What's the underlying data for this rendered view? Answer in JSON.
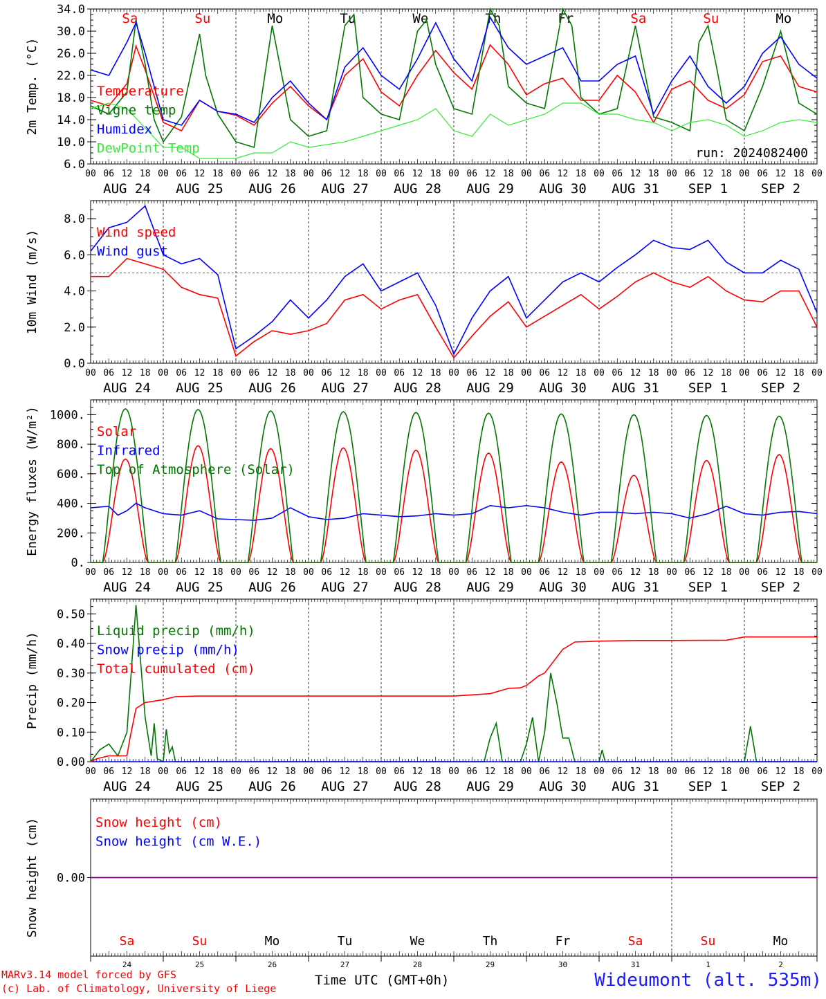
{
  "page": {
    "credit_line1": "MARv3.14 model forced by GFS",
    "credit_line2": "(c) Lab. of Climatology, University of Liege",
    "x_axis_title": "Time UTC (GMT+0h)",
    "station": "Wideumont (alt. 535m)"
  },
  "colors": {
    "red": "#ff0000",
    "green": "#007700",
    "blue": "#0000ff",
    "lightgreen": "#33ee33",
    "purple": "#7f007f"
  },
  "axis": {
    "hour_ticks": [
      "00",
      "06",
      "12",
      "18"
    ],
    "date_labels": [
      "AUG 24",
      "AUG 25",
      "AUG 26",
      "AUG 27",
      "AUG 28",
      "AUG 29",
      "AUG 30",
      "AUG 31",
      "SEP  1",
      "SEP  2"
    ],
    "day_labels": [
      {
        "text": "Sa",
        "weekend": true
      },
      {
        "text": "Su",
        "weekend": true
      },
      {
        "text": "Mo",
        "weekend": false
      },
      {
        "text": "Tu",
        "weekend": false
      },
      {
        "text": "We",
        "weekend": false
      },
      {
        "text": "Th",
        "weekend": false
      },
      {
        "text": "Fr",
        "weekend": false
      },
      {
        "text": "Sa",
        "weekend": true
      },
      {
        "text": "Su",
        "weekend": true
      },
      {
        "text": "Mo",
        "weekend": false
      }
    ],
    "day_numbers": [
      "24",
      "25",
      "26",
      "27",
      "28",
      "29",
      "30",
      "31",
      "1",
      "2"
    ]
  },
  "chart_data": [
    {
      "type": "line",
      "title": "",
      "ylabel": "2m Temp. (°C)",
      "ylim": [
        6,
        34
      ],
      "yticks": [
        "6.0",
        "10.0",
        "14.0",
        "18.0",
        "22.0",
        "26.0",
        "30.0",
        "34.0"
      ],
      "annotation": "run: 2024082400",
      "x_unit": "hours since AUG 24 00 UTC",
      "series": [
        {
          "name": "Temperature",
          "color": "red",
          "x": [
            0,
            6,
            12,
            15,
            18,
            24,
            30,
            36,
            42,
            48,
            54,
            60,
            66,
            72,
            78,
            84,
            90,
            96,
            102,
            108,
            114,
            120,
            126,
            132,
            138,
            144,
            150,
            156,
            162,
            168,
            174,
            180,
            186,
            192,
            198,
            204,
            210,
            216,
            222,
            228,
            234,
            240
          ],
          "y": [
            17.5,
            16.5,
            20.5,
            27.3,
            23,
            13.5,
            12,
            17.5,
            15.5,
            14.8,
            13,
            17,
            20,
            16.5,
            14,
            22,
            25,
            19,
            16.5,
            22,
            26.5,
            22.5,
            19.5,
            27.5,
            24,
            18.5,
            20.5,
            21.5,
            17.5,
            17.5,
            22,
            19,
            13.5,
            19.5,
            21,
            17.5,
            16,
            18.5,
            24.5,
            25.5,
            20,
            19
          ]
        },
        {
          "name": "Vigne temp",
          "color": "green",
          "x": [
            0,
            6,
            12,
            15,
            18,
            21,
            24,
            30,
            36,
            38,
            42,
            48,
            54,
            60,
            66,
            72,
            78,
            84,
            87,
            90,
            96,
            102,
            108,
            111,
            114,
            120,
            126,
            132,
            135,
            138,
            144,
            150,
            156,
            159,
            162,
            168,
            174,
            180,
            186,
            192,
            198,
            201,
            204,
            207,
            210,
            216,
            222,
            228,
            234,
            240
          ],
          "y": [
            16.5,
            15,
            19,
            32,
            24,
            14,
            10,
            14.5,
            29.5,
            22,
            15,
            10,
            9,
            31,
            14,
            11,
            12,
            31,
            33,
            18,
            15,
            14,
            30,
            32,
            24,
            16,
            15,
            34,
            31,
            20,
            17,
            16,
            34,
            31,
            18,
            15,
            16,
            31,
            14.5,
            13.5,
            12,
            28,
            31,
            23,
            14,
            12,
            20,
            30,
            17,
            15
          ]
        },
        {
          "name": "Humidex",
          "color": "blue",
          "x": [
            0,
            6,
            12,
            15,
            18,
            24,
            30,
            36,
            42,
            48,
            54,
            60,
            66,
            72,
            78,
            84,
            90,
            96,
            102,
            108,
            114,
            120,
            126,
            132,
            138,
            144,
            150,
            156,
            162,
            168,
            174,
            180,
            186,
            192,
            198,
            204,
            210,
            216,
            222,
            228,
            234,
            240
          ],
          "y": [
            23,
            22,
            28,
            31.5,
            26,
            14,
            13,
            17.5,
            15.5,
            15,
            13.5,
            18,
            21,
            17,
            14,
            23.5,
            27,
            22,
            19.5,
            25,
            31.5,
            25,
            21,
            32.5,
            27,
            24,
            25.5,
            27,
            21,
            21,
            24,
            25.5,
            15,
            21,
            25.5,
            20,
            17,
            20,
            26,
            29,
            24,
            21.5
          ]
        },
        {
          "name": "DewPoint Temp",
          "color": "lightgreen",
          "x": [
            0,
            6,
            12,
            18,
            24,
            30,
            36,
            42,
            48,
            54,
            60,
            66,
            72,
            78,
            84,
            90,
            96,
            102,
            108,
            114,
            120,
            126,
            132,
            138,
            144,
            150,
            156,
            162,
            168,
            174,
            180,
            186,
            192,
            198,
            204,
            210,
            216,
            222,
            228,
            234,
            240
          ],
          "y": [
            16,
            17,
            16,
            12.5,
            9,
            9,
            7,
            7,
            7,
            8,
            8,
            10,
            9,
            9.5,
            10,
            11,
            12,
            13,
            14,
            16,
            12,
            11,
            15,
            13,
            14,
            15,
            17,
            17,
            15,
            15,
            14,
            13.5,
            12,
            13.5,
            14,
            13,
            11,
            12,
            13.5,
            14,
            13.5
          ]
        }
      ]
    },
    {
      "type": "line",
      "title": "",
      "ylabel": "10m Wind (m/s)",
      "ylim": [
        0,
        9
      ],
      "yticks": [
        "0.0",
        "2.0",
        "4.0",
        "6.0",
        "8.0"
      ],
      "reference_line": 5,
      "x_unit": "hours since AUG 24 00 UTC",
      "series": [
        {
          "name": "Wind speed",
          "color": "red",
          "x": [
            0,
            6,
            12,
            18,
            24,
            30,
            36,
            42,
            48,
            54,
            60,
            66,
            72,
            78,
            84,
            90,
            96,
            102,
            108,
            114,
            120,
            126,
            132,
            138,
            144,
            150,
            156,
            162,
            168,
            174,
            180,
            186,
            192,
            198,
            204,
            210,
            216,
            222,
            228,
            234,
            240
          ],
          "y": [
            4.8,
            4.8,
            5.8,
            5.5,
            5.2,
            4.2,
            3.8,
            3.6,
            0.4,
            1.2,
            1.8,
            1.6,
            1.8,
            2.2,
            3.5,
            3.8,
            3.0,
            3.5,
            3.8,
            2.0,
            0.3,
            1.5,
            2.6,
            3.4,
            2.0,
            2.6,
            3.2,
            3.8,
            3.0,
            3.7,
            4.5,
            5.0,
            4.5,
            4.2,
            4.8,
            4.0,
            3.5,
            3.4,
            4.0,
            4.0,
            2.0
          ]
        },
        {
          "name": "Wind gust",
          "color": "blue",
          "x": [
            0,
            6,
            12,
            18,
            24,
            30,
            36,
            42,
            48,
            54,
            60,
            66,
            72,
            78,
            84,
            90,
            96,
            102,
            108,
            114,
            120,
            126,
            132,
            138,
            144,
            150,
            156,
            162,
            168,
            174,
            180,
            186,
            192,
            198,
            204,
            210,
            216,
            222,
            228,
            234,
            240
          ],
          "y": [
            6.2,
            7.5,
            7.8,
            8.7,
            6.0,
            5.5,
            5.8,
            4.9,
            0.8,
            1.5,
            2.3,
            3.5,
            2.5,
            3.5,
            4.8,
            5.5,
            4.0,
            4.5,
            5.0,
            3.2,
            0.5,
            2.5,
            4.0,
            4.8,
            2.5,
            3.5,
            4.5,
            5.0,
            4.5,
            5.3,
            6.0,
            6.8,
            6.4,
            6.3,
            6.8,
            5.6,
            5.0,
            5.0,
            5.7,
            5.2,
            2.8
          ]
        }
      ]
    },
    {
      "type": "line",
      "title": "",
      "ylabel": "Energy fluxes (W/m²)",
      "ylim": [
        0,
        1100
      ],
      "yticks": [
        "0.",
        "200.",
        "400.",
        "600.",
        "800.",
        "1000."
      ],
      "x_unit": "hours since AUG 24 00 UTC",
      "series": [
        {
          "name": "Solar",
          "color": "red",
          "peaks": [
            700,
            790,
            770,
            775,
            760,
            740,
            680,
            590,
            690,
            730
          ]
        },
        {
          "name": "Infrared",
          "color": "blue",
          "x": [
            0,
            6,
            9,
            12,
            15,
            18,
            24,
            30,
            36,
            42,
            48,
            54,
            60,
            66,
            72,
            78,
            84,
            90,
            96,
            102,
            108,
            114,
            120,
            126,
            132,
            138,
            144,
            150,
            156,
            162,
            168,
            174,
            180,
            186,
            192,
            198,
            204,
            210,
            216,
            222,
            228,
            234,
            240
          ],
          "y": [
            370,
            380,
            320,
            350,
            400,
            370,
            330,
            320,
            350,
            295,
            290,
            285,
            300,
            370,
            310,
            290,
            300,
            330,
            320,
            310,
            315,
            330,
            320,
            330,
            385,
            370,
            385,
            370,
            340,
            320,
            340,
            340,
            330,
            340,
            330,
            300,
            330,
            380,
            330,
            320,
            340,
            345,
            330
          ]
        },
        {
          "name": "Top of Atmosphere (Solar)",
          "color": "green",
          "peaks": [
            1040,
            1035,
            1025,
            1020,
            1015,
            1010,
            1005,
            1000,
            995,
            990
          ]
        }
      ]
    },
    {
      "type": "line",
      "title": "",
      "ylabel": "Precip (mm/h)",
      "ylim": [
        0,
        0.55
      ],
      "yticks": [
        "0.00",
        "0.10",
        "0.20",
        "0.30",
        "0.40",
        "0.50"
      ],
      "x_unit": "hours since AUG 24 00 UTC",
      "series": [
        {
          "name": "Liquid precip (mm/h)",
          "color": "green",
          "x": [
            0,
            3,
            6,
            9,
            12,
            15,
            18,
            20,
            21,
            22,
            24,
            25,
            26,
            27,
            28,
            30,
            32,
            34,
            36,
            48,
            130,
            132,
            134,
            136,
            140,
            142,
            144,
            146,
            148,
            150,
            152,
            154,
            156,
            158,
            160,
            162,
            168,
            169,
            170,
            214,
            216,
            218,
            220,
            240
          ],
          "y": [
            0,
            0.04,
            0.06,
            0.02,
            0.1,
            0.53,
            0.15,
            0.02,
            0.13,
            0.01,
            0,
            0.11,
            0.03,
            0.05,
            0,
            0,
            0,
            0,
            0,
            0,
            0,
            0.08,
            0.13,
            0,
            0,
            0,
            0.06,
            0.15,
            0,
            0.1,
            0.3,
            0.2,
            0.08,
            0.08,
            0,
            0,
            0,
            0.04,
            0,
            0,
            0,
            0.12,
            0,
            0
          ]
        },
        {
          "name": "Snow precip (mm/h)",
          "color": "blue",
          "x": [
            0,
            240
          ],
          "y": [
            0,
            0
          ]
        },
        {
          "name": "Total cumulated (cm)",
          "color": "red",
          "x": [
            0,
            2,
            6,
            12,
            13,
            15,
            18,
            21,
            24,
            28,
            36,
            48,
            60,
            72,
            84,
            96,
            108,
            120,
            132,
            138,
            142,
            144,
            148,
            150,
            156,
            160,
            168,
            180,
            192,
            210,
            216,
            240
          ],
          "y": [
            0,
            0.01,
            0.02,
            0.02,
            0.08,
            0.18,
            0.2,
            0.205,
            0.21,
            0.22,
            0.222,
            0.222,
            0.222,
            0.222,
            0.222,
            0.222,
            0.222,
            0.222,
            0.23,
            0.248,
            0.25,
            0.258,
            0.29,
            0.3,
            0.38,
            0.405,
            0.408,
            0.41,
            0.41,
            0.411,
            0.422,
            0.422
          ]
        }
      ]
    },
    {
      "type": "line",
      "title": "",
      "ylabel": "Snow height (cm)",
      "ylim": [
        -1,
        1
      ],
      "yticks": [
        "0.00"
      ],
      "x_unit": "hours since AUG 24 00 UTC",
      "series": [
        {
          "name": "Snow height (cm)",
          "color": "red",
          "x": [
            0,
            240
          ],
          "y": [
            0,
            0
          ]
        },
        {
          "name": "Snow height (cm W.E.)",
          "color": "blue",
          "x": [
            0,
            240
          ],
          "y": [
            0,
            0
          ]
        }
      ]
    }
  ]
}
